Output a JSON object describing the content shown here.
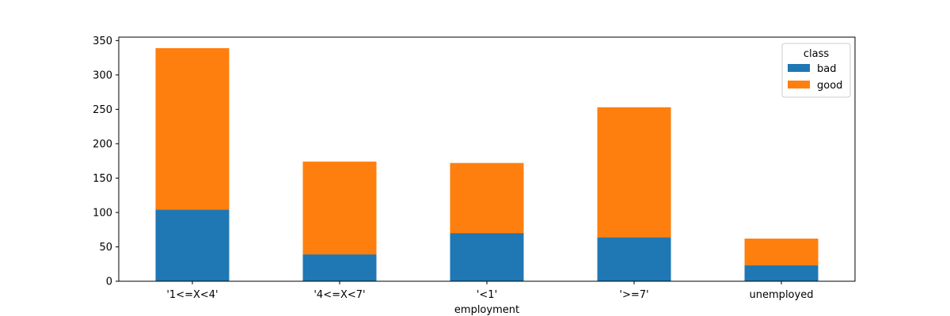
{
  "chart_data": {
    "type": "bar",
    "stacked": true,
    "categories": [
      "'1<=X<4'",
      "'4<=X<7'",
      "'<1'",
      "'>=7'",
      "unemployed"
    ],
    "series": [
      {
        "name": "bad",
        "values": [
          104,
          39,
          70,
          64,
          23
        ],
        "color": "#1f77b4"
      },
      {
        "name": "good",
        "values": [
          235,
          135,
          102,
          189,
          39
        ],
        "color": "#ff7f0e"
      }
    ],
    "title": "",
    "xlabel": "employment",
    "ylabel": "",
    "ylim": [
      0,
      355
    ],
    "yticks": [
      0,
      50,
      100,
      150,
      200,
      250,
      300,
      350
    ],
    "grid": false,
    "legend": {
      "title": "class",
      "placement": "top-right"
    }
  }
}
